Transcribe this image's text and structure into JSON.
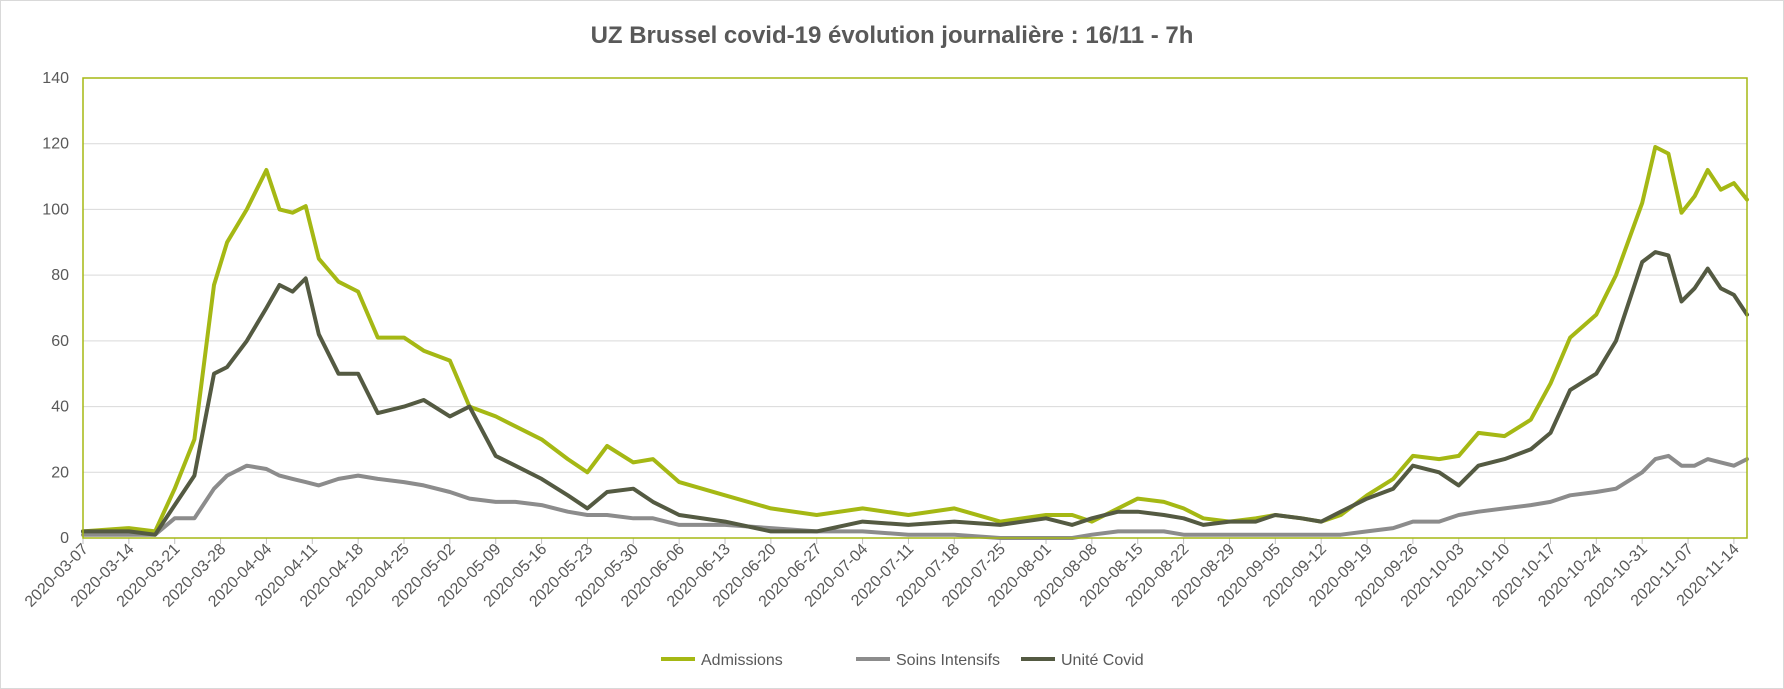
{
  "chart_data": {
    "type": "line",
    "title": "UZ Brussel covid-19 évolution journalière : 16/11 - 7h",
    "xlabel": "",
    "ylabel": "",
    "ylim": [
      0,
      140
    ],
    "yticks": [
      0,
      20,
      40,
      60,
      80,
      100,
      120,
      140
    ],
    "grid": true,
    "legend_position": "bottom",
    "start_date": "2020-03-07",
    "end_date": "2020-11-16",
    "x_tick_labels": [
      "2020-03-07",
      "2020-03-14",
      "2020-03-21",
      "2020-03-28",
      "2020-04-04",
      "2020-04-11",
      "2020-04-18",
      "2020-04-25",
      "2020-05-02",
      "2020-05-09",
      "2020-05-16",
      "2020-05-23",
      "2020-05-30",
      "2020-06-06",
      "2020-06-13",
      "2020-06-20",
      "2020-06-27",
      "2020-07-04",
      "2020-07-11",
      "2020-07-18",
      "2020-07-25",
      "2020-08-01",
      "2020-08-08",
      "2020-08-15",
      "2020-08-22",
      "2020-08-29",
      "2020-09-05",
      "2020-09-12",
      "2020-09-19",
      "2020-09-26",
      "2020-10-03",
      "2020-10-10",
      "2020-10-17",
      "2020-10-24",
      "2020-10-31",
      "2020-11-07",
      "2020-11-14"
    ],
    "x": [
      "2020-03-07",
      "2020-03-14",
      "2020-03-18",
      "2020-03-21",
      "2020-03-24",
      "2020-03-27",
      "2020-03-29",
      "2020-04-01",
      "2020-04-04",
      "2020-04-06",
      "2020-04-08",
      "2020-04-10",
      "2020-04-12",
      "2020-04-15",
      "2020-04-18",
      "2020-04-21",
      "2020-04-25",
      "2020-04-28",
      "2020-05-02",
      "2020-05-05",
      "2020-05-09",
      "2020-05-12",
      "2020-05-16",
      "2020-05-20",
      "2020-05-23",
      "2020-05-26",
      "2020-05-30",
      "2020-06-02",
      "2020-06-06",
      "2020-06-13",
      "2020-06-20",
      "2020-06-27",
      "2020-07-04",
      "2020-07-11",
      "2020-07-18",
      "2020-07-25",
      "2020-08-01",
      "2020-08-05",
      "2020-08-08",
      "2020-08-12",
      "2020-08-15",
      "2020-08-19",
      "2020-08-22",
      "2020-08-25",
      "2020-08-29",
      "2020-09-02",
      "2020-09-05",
      "2020-09-09",
      "2020-09-12",
      "2020-09-15",
      "2020-09-19",
      "2020-09-23",
      "2020-09-26",
      "2020-09-30",
      "2020-10-03",
      "2020-10-06",
      "2020-10-10",
      "2020-10-14",
      "2020-10-17",
      "2020-10-20",
      "2020-10-24",
      "2020-10-27",
      "2020-10-31",
      "2020-11-02",
      "2020-11-04",
      "2020-11-06",
      "2020-11-08",
      "2020-11-10",
      "2020-11-12",
      "2020-11-14",
      "2020-11-16"
    ],
    "series": [
      {
        "name": "Admissions",
        "color": "#a5b814",
        "values": [
          2,
          3,
          2,
          15,
          30,
          77,
          90,
          100,
          112,
          100,
          99,
          101,
          85,
          78,
          75,
          61,
          61,
          57,
          54,
          40,
          37,
          34,
          30,
          24,
          20,
          28,
          23,
          24,
          17,
          13,
          9,
          7,
          9,
          7,
          9,
          5,
          7,
          7,
          5,
          9,
          12,
          11,
          9,
          6,
          5,
          6,
          7,
          6,
          5,
          7,
          13,
          18,
          25,
          24,
          25,
          32,
          31,
          36,
          47,
          61,
          68,
          80,
          102,
          119,
          117,
          99,
          104,
          112,
          106,
          108,
          103
        ]
      },
      {
        "name": "Soins Intensifs",
        "color": "#8c8c8c",
        "values": [
          1,
          1,
          1,
          6,
          6,
          15,
          19,
          22,
          21,
          19,
          18,
          17,
          16,
          18,
          19,
          18,
          17,
          16,
          14,
          12,
          11,
          11,
          10,
          8,
          7,
          7,
          6,
          6,
          4,
          4,
          3,
          2,
          2,
          1,
          1,
          0,
          0,
          0,
          1,
          2,
          2,
          2,
          1,
          1,
          1,
          1,
          1,
          1,
          1,
          1,
          2,
          3,
          5,
          5,
          7,
          8,
          9,
          10,
          11,
          13,
          14,
          15,
          20,
          24,
          25,
          22,
          22,
          24,
          23,
          22,
          24
        ]
      },
      {
        "name": "Unité Covid",
        "color": "#545a42",
        "values": [
          2,
          2,
          1,
          10,
          19,
          50,
          52,
          60,
          70,
          77,
          75,
          79,
          62,
          50,
          50,
          38,
          40,
          42,
          37,
          40,
          25,
          22,
          18,
          13,
          9,
          14,
          15,
          11,
          7,
          5,
          2,
          2,
          5,
          4,
          5,
          4,
          6,
          4,
          6,
          8,
          8,
          7,
          6,
          4,
          5,
          5,
          7,
          6,
          5,
          8,
          12,
          15,
          22,
          20,
          16,
          22,
          24,
          27,
          32,
          45,
          50,
          60,
          84,
          87,
          86,
          72,
          76,
          82,
          76,
          74,
          68
        ]
      }
    ]
  }
}
